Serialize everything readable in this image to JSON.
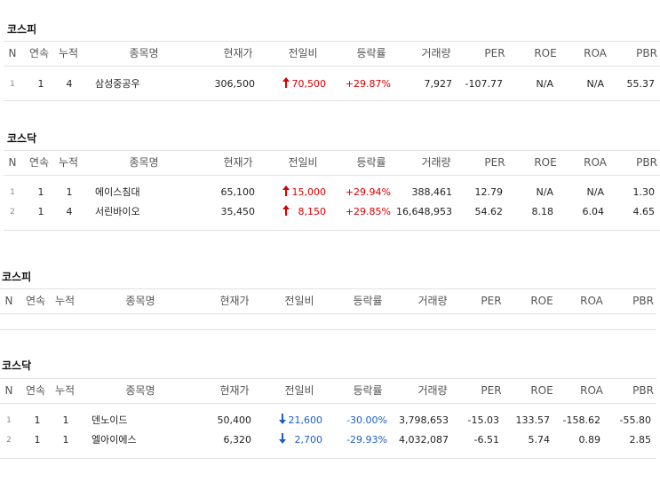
{
  "columns": [
    "N",
    "연속",
    "누적",
    "종목명",
    "현재가",
    "전일비",
    "등락률",
    "거래량",
    "PER",
    "ROE",
    "ROA",
    "PBR"
  ],
  "sections": [
    {
      "title": "코스피",
      "rows": [
        [
          "1",
          "1",
          "4",
          "삼성중공우",
          "306,500",
          "70,500",
          "+29.87%",
          "7,927",
          "-107.77",
          "N/A",
          "N/A",
          "55.37"
        ]
      ]
    },
    {
      "title": "코스닥",
      "rows": [
        [
          "1",
          "1",
          "1",
          "에이스침대",
          "65,100",
          "15,000",
          "+29.94%",
          "388,461",
          "12.79",
          "N/A",
          "N/A",
          "1.30"
        ],
        [
          "2",
          "1",
          "4",
          "서린바이오",
          "35,450",
          "8,150",
          "+29.85%",
          "16,648,953",
          "54.62",
          "8.18",
          "6.04",
          "4.65"
        ]
      ]
    },
    {
      "title": "코스피",
      "rows": []
    },
    {
      "title": "코스닥",
      "rows": [
        [
          "1",
          "1",
          "1",
          "덴노이드",
          "50,400",
          "21,600",
          "-30.00%",
          "3,798,653",
          "-15.03",
          "133.57",
          "-158.62",
          "-55.80"
        ],
        [
          "2",
          "1",
          "1",
          "엘아이에스",
          "6,320",
          "2,700",
          "-29.93%",
          "4,032,087",
          "-6.51",
          "5.74",
          "0.89",
          "2.85"
        ]
      ]
    }
  ]
}
